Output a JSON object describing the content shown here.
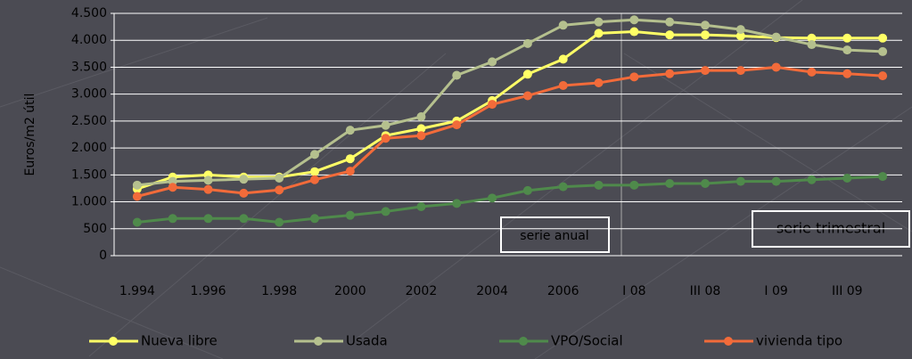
{
  "chart_data": {
    "type": "line",
    "ylabel": "Euros/m2 útil",
    "categories": [
      "1.994",
      null,
      "1.996",
      null,
      "1.998",
      null,
      "2000",
      null,
      "2002",
      null,
      "2004",
      null,
      "2006",
      null,
      "I 08",
      null,
      "III 08",
      null,
      "I 09",
      null,
      "III 09",
      null
    ],
    "series": [
      {
        "name": "Nueva libre",
        "color": "#ffff66",
        "values": [
          1240,
          1460,
          1500,
          1460,
          1460,
          1560,
          1800,
          2230,
          2360,
          2500,
          2880,
          3370,
          3650,
          4130,
          4160,
          4100,
          4100,
          4080,
          4050,
          4040,
          4040,
          4040
        ]
      },
      {
        "name": "Usada",
        "color": "#b5c08e",
        "values": [
          1310,
          1380,
          1400,
          1420,
          1440,
          1880,
          2330,
          2420,
          2580,
          3350,
          3600,
          3940,
          4280,
          4340,
          4380,
          4340,
          4280,
          4200,
          4060,
          3920,
          3820,
          3790
        ]
      },
      {
        "name": "VPO/Social",
        "color": "#4f8a4b",
        "values": [
          620,
          690,
          690,
          690,
          620,
          690,
          750,
          820,
          910,
          970,
          1070,
          1210,
          1280,
          1310,
          1310,
          1340,
          1340,
          1380,
          1380,
          1410,
          1440,
          1470
        ]
      },
      {
        "name": "vivienda tipo",
        "color": "#f26b3a",
        "values": [
          1100,
          1270,
          1230,
          1160,
          1220,
          1410,
          1570,
          2180,
          2230,
          2430,
          2810,
          2970,
          3160,
          3210,
          3320,
          3380,
          3440,
          3440,
          3500,
          3410,
          3380,
          3340
        ]
      }
    ],
    "ylim": [
      0,
      4500
    ],
    "yticks": [
      0,
      500,
      {
        "value": 1000,
        "label": "1.000"
      },
      {
        "value": 1500,
        "label": "1.500"
      },
      {
        "value": 2000,
        "label": "2.000"
      },
      {
        "value": 2500,
        "label": "2.500"
      },
      {
        "value": 3000,
        "label": "3.000"
      },
      {
        "value": 3500,
        "label": "3.500"
      },
      {
        "value": 4000,
        "label": "4.000"
      },
      {
        "value": 4500,
        "label": "4.500"
      }
    ],
    "grid": true,
    "annotations": [
      "serie anual",
      "serie trimestral"
    ]
  }
}
